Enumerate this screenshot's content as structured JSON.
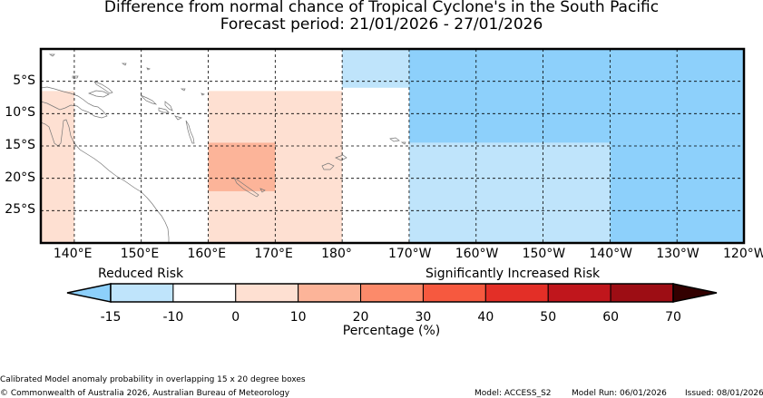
{
  "title": "Difference from normal chance of Tropical Cyclone's in the South Pacific",
  "subtitle": "Forecast period: 21/01/2026 - 27/01/2026",
  "lon_labels": [
    "140°E",
    "150°E",
    "160°E",
    "170°E",
    "180°",
    "170°W",
    "160°W",
    "150°W",
    "140°W",
    "130°W",
    "120°W"
  ],
  "lat_labels": [
    "5°S",
    "10°S",
    "15°S",
    "20°S",
    "25°S"
  ],
  "colorbar": {
    "left_label": "Reduced Risk",
    "right_label": "Significantly Increased Risk",
    "tick_labels": [
      "-15",
      "-10",
      "0",
      "10",
      "20",
      "30",
      "40",
      "50",
      "60",
      "70"
    ],
    "xlabel": "Percentage (%)",
    "under_color": "#8dd0fb",
    "over_color": "#330000",
    "colors": [
      "#bfe4fb",
      "#ffffff",
      "#fee0d2",
      "#fcb499",
      "#fc8a6a",
      "#f6593f",
      "#e32f27",
      "#c0161c",
      "#9d0d14"
    ]
  },
  "regions": [
    {
      "lon": [
        135,
        140
      ],
      "lat": [
        -6.5,
        -30
      ],
      "color": "#fee0d2"
    },
    {
      "lon": [
        160,
        180
      ],
      "lat": [
        -6.5,
        -30
      ],
      "color": "#fee0d2"
    },
    {
      "lon": [
        160,
        170
      ],
      "lat": [
        -14.5,
        -22
      ],
      "color": "#fcb499"
    },
    {
      "lon": [
        180,
        190
      ],
      "lat": [
        0,
        -6
      ],
      "color": "#bfe4fb"
    },
    {
      "lon": [
        190,
        240
      ],
      "lat": [
        0,
        -14.5
      ],
      "color": "#8dd0fb"
    },
    {
      "lon": [
        190,
        220
      ],
      "lat": [
        -14.5,
        -30
      ],
      "color": "#bfe4fb"
    },
    {
      "lon": [
        220,
        240
      ],
      "lat": [
        -14.5,
        -30
      ],
      "color": "#8dd0fb"
    }
  ],
  "footer": {
    "note": "Calibrated Model anomaly probability in overlapping 15 x 20 degree boxes",
    "copyright": "© Commonwealth of Australia 2026, Australian Bureau of Meteorology",
    "model": "Model: ACCESS_S2",
    "model_run": "Model Run: 06/01/2026",
    "issued": "Issued: 08/01/2026"
  }
}
